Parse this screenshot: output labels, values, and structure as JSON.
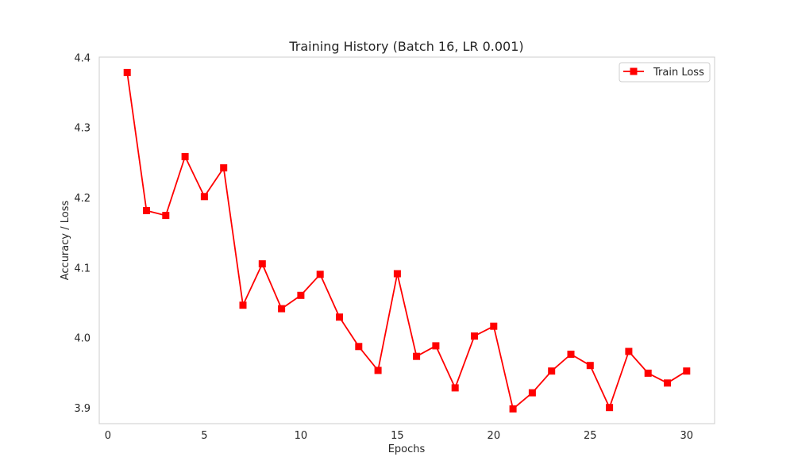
{
  "chart_data": {
    "type": "line",
    "title": "Training History (Batch 16, LR 0.001)",
    "xlabel": "Epochs",
    "ylabel": "Accuracy / Loss",
    "xlim": [
      -0.45,
      31.45
    ],
    "ylim": [
      3.878,
      4.401
    ],
    "xticks": [
      0,
      5,
      10,
      15,
      20,
      25,
      30
    ],
    "yticks": [
      3.9,
      4.0,
      4.1,
      4.2,
      4.3,
      4.4
    ],
    "grid": false,
    "legend_position": "top-right",
    "series": [
      {
        "name": "Train Loss",
        "color": "#ff0000",
        "marker": "square",
        "x": [
          1,
          2,
          3,
          4,
          5,
          6,
          7,
          8,
          9,
          10,
          11,
          12,
          13,
          14,
          15,
          16,
          17,
          18,
          19,
          20,
          21,
          22,
          23,
          24,
          25,
          26,
          27,
          28,
          29,
          30
        ],
        "y": [
          4.379,
          4.182,
          4.175,
          4.259,
          4.202,
          4.243,
          4.047,
          4.106,
          4.042,
          4.061,
          4.091,
          4.03,
          3.988,
          3.954,
          4.092,
          3.974,
          3.989,
          3.929,
          4.003,
          4.017,
          3.899,
          3.922,
          3.953,
          3.977,
          3.961,
          3.901,
          3.981,
          3.95,
          3.936,
          3.953
        ]
      }
    ]
  }
}
